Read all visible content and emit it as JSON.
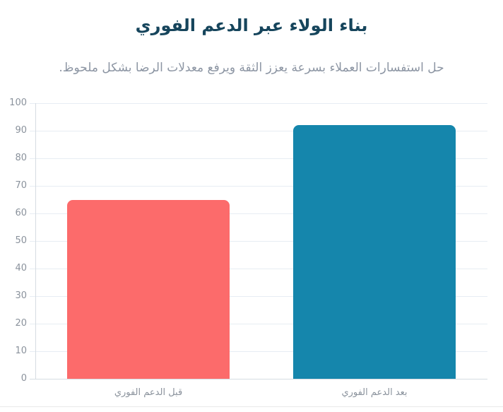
{
  "colors": {
    "background": "#FFFFFF",
    "title_text": "#16455C",
    "subtitle_text": "#8C95A3",
    "grid_line": "#E7EDF3",
    "axis_line": "#D6DCE2",
    "tick_label": "#8A929C",
    "bar_before": "#FC6B6B",
    "bar_after": "#1586AC",
    "bottom_divider": "#E9E9E9"
  },
  "chart_data": {
    "type": "bar",
    "title": "بناء الولاء عبر الدعم الفوري",
    "subtitle": "حل استفسارات العملاء بسرعة يعزز الثقة ويرفع معدلات الرضا بشكل ملحوظ.",
    "categories": [
      "قبل الدعم الفوري",
      "بعد الدعم الفوري"
    ],
    "category_names": [
      "before-support",
      "after-support"
    ],
    "values": [
      65,
      92
    ],
    "series_colors": [
      "#FC6B6B",
      "#1586AC"
    ],
    "xlabel": "",
    "ylabel": "",
    "ylim": [
      0,
      100
    ],
    "yticks": [
      0,
      10,
      20,
      30,
      40,
      50,
      60,
      70,
      80,
      90,
      100
    ],
    "grid": true,
    "legend": false,
    "direction": "rtl",
    "bar_corner_radius_px": 8
  }
}
